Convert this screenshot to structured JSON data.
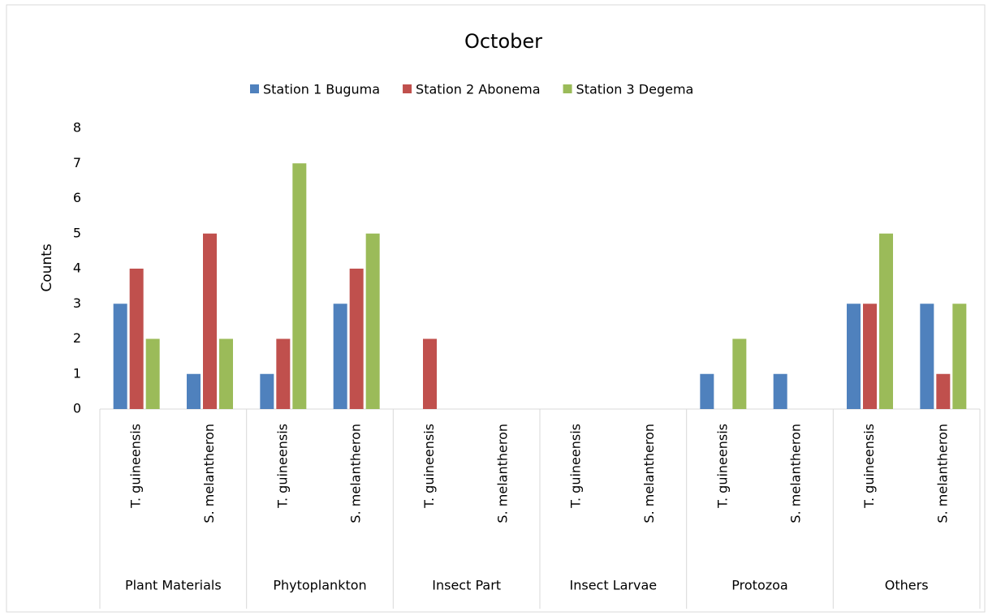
{
  "chart_data": {
    "type": "bar",
    "title": "October",
    "y_label": "Counts",
    "categories": [
      "T. guineensis",
      "S. melantheron",
      "T. guineensis",
      "S. melantheron",
      "T. guineensis",
      "S. melantheron",
      "T. guineensis",
      "S. melantheron",
      "T. guineensis",
      "S. melantheron",
      "T. guineensis",
      "S. melantheron"
    ],
    "groups": [
      "Plant Materials",
      "Phytoplankton",
      "Insect Part",
      "Insect Larvae",
      "Protozoa",
      "Others"
    ],
    "series": [
      {
        "name": "Station 1 Buguma",
        "color": "#4f81bd",
        "values": [
          3,
          1,
          1,
          3,
          0,
          0,
          0,
          0,
          1,
          1,
          3,
          3
        ]
      },
      {
        "name": "Station 2 Abonema",
        "color": "#c0504d",
        "values": [
          4,
          5,
          2,
          4,
          2,
          0,
          0,
          0,
          0,
          0,
          3,
          1
        ]
      },
      {
        "name": "Station 3 Degema",
        "color": "#9bbb59",
        "values": [
          2,
          2,
          7,
          5,
          0,
          0,
          0,
          0,
          2,
          0,
          5,
          3
        ]
      }
    ],
    "ylim": [
      0,
      8
    ],
    "yticks": [
      0,
      1,
      2,
      3,
      4,
      5,
      6,
      7,
      8
    ],
    "grid": false,
    "legend": "top"
  }
}
